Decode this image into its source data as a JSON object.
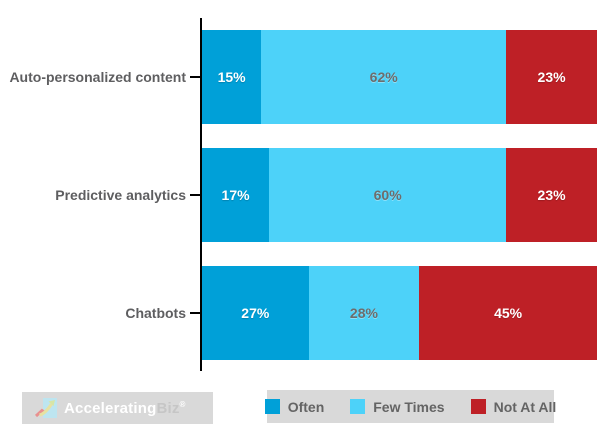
{
  "chart_data": {
    "type": "bar",
    "orientation": "horizontal",
    "stacked": true,
    "categories": [
      "Auto-personalized content",
      "Predictive analytics",
      "Chatbots"
    ],
    "series": [
      {
        "name": "Often",
        "color": "#00a0d8",
        "value_text": "white",
        "values": [
          15,
          17,
          27
        ]
      },
      {
        "name": "Few Times",
        "color": "#4dd2f9",
        "value_text": "gray",
        "values": [
          62,
          60,
          28
        ]
      },
      {
        "name": "Not At All",
        "color": "#be2026",
        "value_text": "white",
        "values": [
          23,
          23,
          45
        ]
      }
    ],
    "value_suffix": "%",
    "xlim": [
      0,
      100
    ],
    "grid": false,
    "legend_position": "bottom",
    "axis_color": "#000000"
  },
  "legend": {
    "items": [
      {
        "label": "Often",
        "color": "#00a0d8"
      },
      {
        "label": "Few Times",
        "color": "#4dd2f9"
      },
      {
        "label": "Not At All",
        "color": "#be2026"
      }
    ]
  },
  "branding": {
    "logo_primary": "Accelerating",
    "logo_secondary": "Biz",
    "registered_mark": "®",
    "logo_icon": "growth-chart-icon"
  },
  "colors": {
    "category_label": "#5e5e60",
    "legend_label": "#646464",
    "panel_background": "#d9d9d9",
    "background": "#ffffff"
  }
}
